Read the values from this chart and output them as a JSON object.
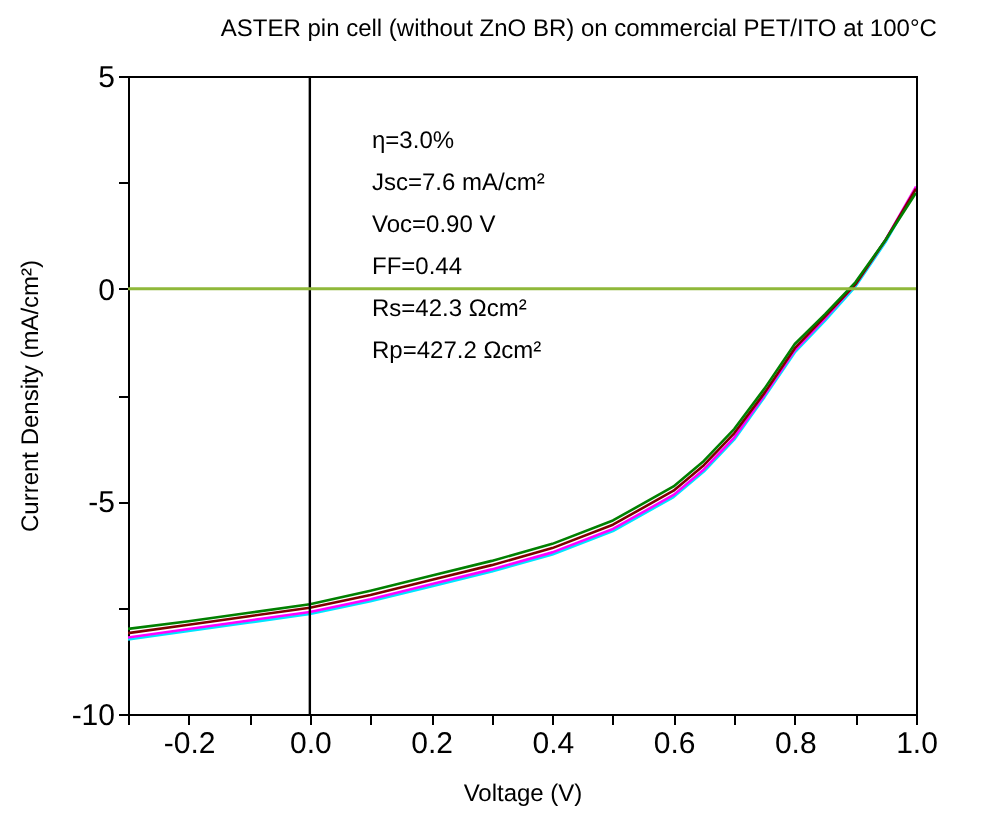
{
  "chart_data": {
    "type": "line",
    "title": "ASTER pin cell (without ZnO BR) on commercial PET/ITO at 100°C",
    "xlabel": "Voltage (V)",
    "ylabel": "Current Density (mA/cm²)",
    "x": [
      -0.3,
      -0.2,
      -0.1,
      0,
      0.1,
      0.2,
      0.3,
      0.4,
      0.5,
      0.6,
      0.65,
      0.7,
      0.75,
      0.8,
      0.85,
      0.9,
      0.95,
      1.0
    ],
    "series": [
      {
        "color": "#00e5ff",
        "values": [
          -8.25,
          -8.05,
          -7.85,
          -7.65,
          -7.35,
          -7.0,
          -6.65,
          -6.25,
          -5.7,
          -4.9,
          -4.3,
          -3.55,
          -2.55,
          -1.5,
          -0.75,
          0.05,
          1.1,
          2.35
        ]
      },
      {
        "color": "#ff00ff",
        "values": [
          -8.2,
          -8.0,
          -7.8,
          -7.6,
          -7.3,
          -6.95,
          -6.6,
          -6.2,
          -5.65,
          -4.85,
          -4.25,
          -3.5,
          -2.5,
          -1.45,
          -0.7,
          0.1,
          1.15,
          2.4
        ]
      },
      {
        "color": "#800000",
        "values": [
          -8.1,
          -7.9,
          -7.7,
          -7.5,
          -7.2,
          -6.85,
          -6.5,
          -6.1,
          -5.55,
          -4.75,
          -4.15,
          -3.4,
          -2.45,
          -1.4,
          -0.65,
          0.1,
          1.15,
          2.35
        ]
      },
      {
        "color": "#008000",
        "values": [
          -8.0,
          -7.82,
          -7.62,
          -7.42,
          -7.1,
          -6.75,
          -6.4,
          -6.0,
          -5.45,
          -4.65,
          -4.05,
          -3.3,
          -2.35,
          -1.3,
          -0.6,
          0.15,
          1.15,
          2.25
        ]
      }
    ],
    "xlim": [
      -0.3,
      1.0
    ],
    "xticks": [
      {
        "value": -0.3,
        "label": null
      },
      {
        "value": -0.2,
        "label": "-0.2"
      },
      {
        "value": -0.1,
        "label": null
      },
      {
        "value": 0,
        "label": "0.0"
      },
      {
        "value": 0.1,
        "label": null
      },
      {
        "value": 0.2,
        "label": "0.2"
      },
      {
        "value": 0.3,
        "label": null
      },
      {
        "value": 0.4,
        "label": "0.4"
      },
      {
        "value": 0.5,
        "label": null
      },
      {
        "value": 0.6,
        "label": "0.6"
      },
      {
        "value": 0.7,
        "label": null
      },
      {
        "value": 0.8,
        "label": "0.8"
      },
      {
        "value": 0.9,
        "label": null
      },
      {
        "value": 1.0,
        "label": "1.0"
      }
    ],
    "ylim": [
      -10,
      5
    ],
    "yticks": [
      -10,
      {
        "value": -7.5,
        "label": null
      },
      -5,
      {
        "value": -2.5,
        "label": null
      },
      0,
      {
        "value": 2.5,
        "label": null
      },
      5
    ],
    "ref_lines": [
      {
        "axis": "x",
        "value": 0,
        "color": "#000000"
      },
      {
        "axis": "y",
        "value": 0,
        "color": "#8fb83a"
      }
    ],
    "annotations": [
      "η=3.0%",
      "Jsc=7.6 mA/cm²",
      "Voc=0.90 V",
      "FF=0.44",
      "Rs=42.3 Ωcm²",
      "Rp=427.2 Ωcm²"
    ],
    "grid": false,
    "marker": "none",
    "line_style": "solid"
  }
}
